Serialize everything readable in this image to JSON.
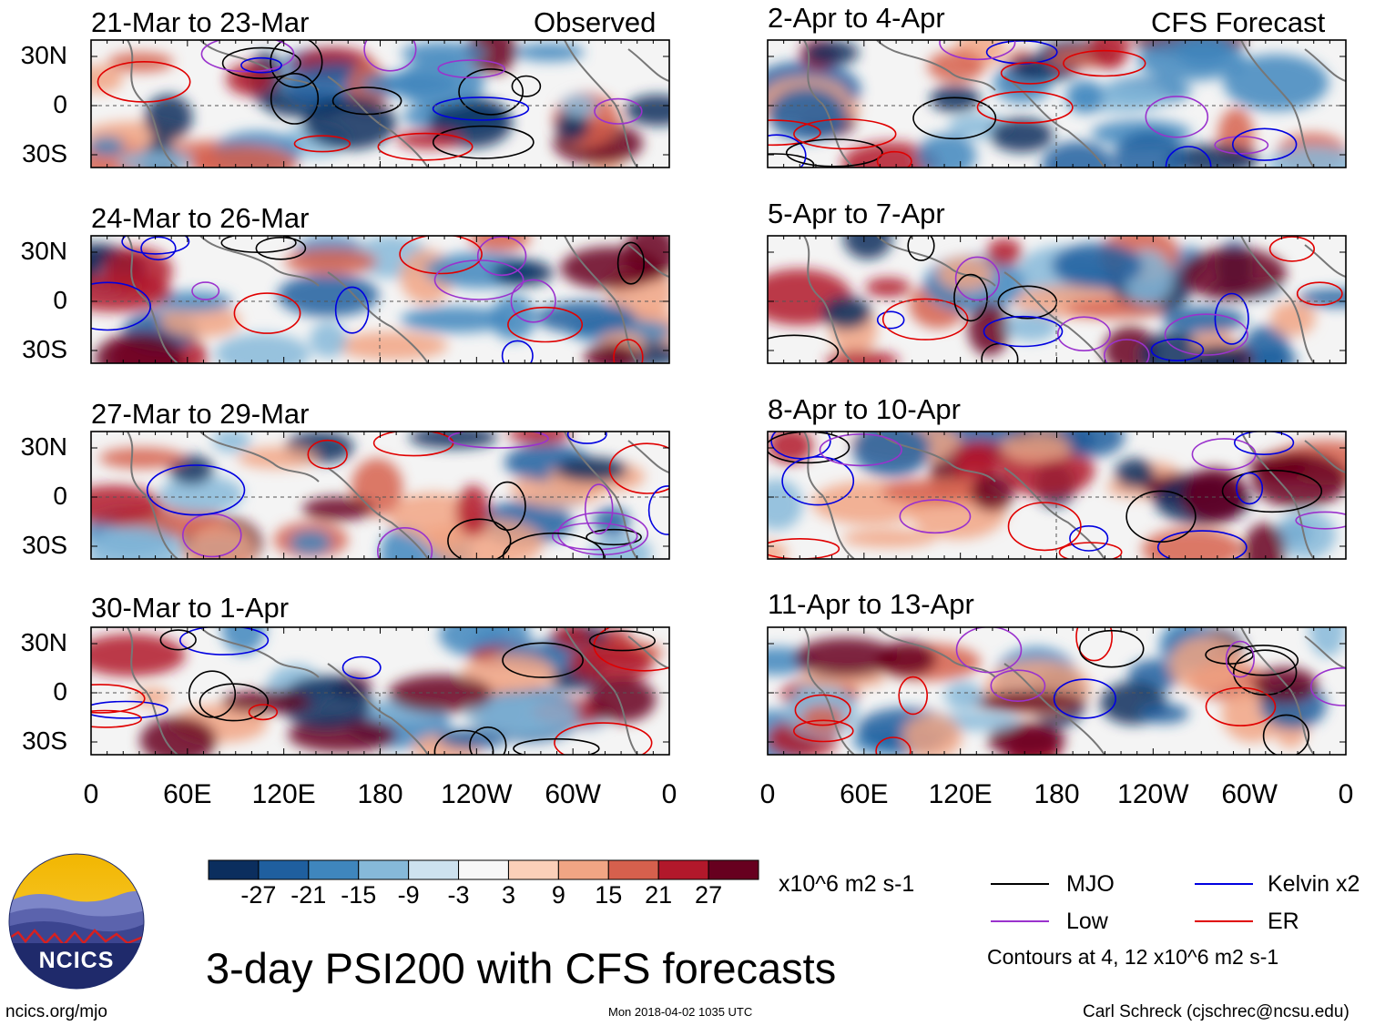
{
  "title": "3-day PSI200 with CFS forecasts",
  "panel_headers": {
    "observed": "Observed",
    "forecast": "CFS Forecast"
  },
  "observed_panels": [
    {
      "period": "21-Mar to 23-Mar"
    },
    {
      "period": "24-Mar to 26-Mar"
    },
    {
      "period": "27-Mar to 29-Mar"
    },
    {
      "period": "30-Mar to 1-Apr"
    }
  ],
  "forecast_panels": [
    {
      "period": "2-Apr to 4-Apr"
    },
    {
      "period": "5-Apr to 7-Apr"
    },
    {
      "period": "8-Apr to 10-Apr"
    },
    {
      "period": "11-Apr to 13-Apr"
    }
  ],
  "lat_labels": [
    "30N",
    "0",
    "30S"
  ],
  "lon_labels": [
    "0",
    "60E",
    "120E",
    "180",
    "120W",
    "60W",
    "0"
  ],
  "colorbar": {
    "ticks": [
      "-27",
      "-21",
      "-15",
      "-9",
      "-3",
      "3",
      "9",
      "15",
      "21",
      "27"
    ],
    "units": "x10^6 m2 s-1",
    "colors": [
      "#0b2e5e",
      "#1f5f9f",
      "#3f86bd",
      "#86b9d9",
      "#cde2ef",
      "#f7f7f7",
      "#fbd0b9",
      "#f1a584",
      "#d6604d",
      "#b2182b",
      "#67001f"
    ]
  },
  "legend": {
    "items": [
      {
        "label": "MJO",
        "color": "#000000"
      },
      {
        "label": "Kelvin x2",
        "color": "#0000e0"
      },
      {
        "label": "Low",
        "color": "#9a32cd"
      },
      {
        "label": "ER",
        "color": "#e00000"
      }
    ],
    "note": "Contours at 4, 12 x10^6 m2 s-1"
  },
  "logo_text": "NCICS",
  "footer": {
    "url": "ncics.org/mjo",
    "timestamp": "Mon 2018-04-02 1035 UTC",
    "credit": "Carl Schreck (cjschrec@ncsu.edu)"
  }
}
